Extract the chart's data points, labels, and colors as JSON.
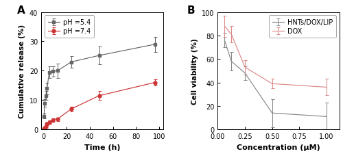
{
  "panel_A": {
    "title": "A",
    "xlabel": "Time (h)",
    "ylabel": "Cumulative release (%)",
    "ylim": [
      0,
      40
    ],
    "xlim": [
      -2,
      103
    ],
    "yticks": [
      0,
      10,
      20,
      30,
      40
    ],
    "xticks": [
      0,
      20,
      40,
      60,
      80,
      100
    ],
    "series": [
      {
        "label": "pH =5.4",
        "color": "#666666",
        "marker": "s",
        "mfc": "#666666",
        "x": [
          0.5,
          1,
          2,
          3,
          5,
          8,
          12,
          24,
          48,
          96
        ],
        "y": [
          4.5,
          9.0,
          11.5,
          14.0,
          19.5,
          19.8,
          20.0,
          23.0,
          25.2,
          29.0
        ],
        "yerr": [
          0.8,
          1.2,
          1.5,
          2.0,
          2.0,
          1.8,
          2.5,
          2.0,
          3.0,
          2.5
        ]
      },
      {
        "label": "pH =7.4",
        "color": "#cc3333",
        "marker": "o",
        "mfc": "#cc3333",
        "x": [
          0.5,
          1,
          2,
          3,
          5,
          8,
          12,
          24,
          48,
          96
        ],
        "y": [
          0.2,
          0.5,
          1.0,
          2.0,
          2.5,
          3.2,
          3.5,
          7.0,
          11.5,
          16.0
        ],
        "yerr": [
          0.2,
          0.3,
          0.4,
          0.5,
          0.5,
          0.5,
          0.6,
          0.8,
          1.5,
          1.0
        ]
      }
    ]
  },
  "panel_B": {
    "title": "B",
    "xlabel": "Concentration (μM)",
    "ylabel": "Cell viability (%)",
    "ylim": [
      0,
      100
    ],
    "xlim": [
      0.0,
      1.12
    ],
    "yticks": [
      0,
      20,
      40,
      60,
      80,
      100
    ],
    "xticks": [
      0.0,
      0.25,
      0.5,
      0.75,
      1.0
    ],
    "series": [
      {
        "label": "HNTs/DOX/LIP",
        "color": "#888888",
        "x": [
          0.0625,
          0.125,
          0.25,
          0.5,
          1.0
        ],
        "y": [
          76.0,
          58.0,
          48.0,
          14.0,
          11.0
        ],
        "yerr": [
          6.0,
          8.0,
          6.0,
          12.0,
          12.0
        ]
      },
      {
        "label": "DOX",
        "color": "#dd8888",
        "x": [
          0.0625,
          0.125,
          0.25,
          0.5,
          1.0
        ],
        "y": [
          88.0,
          81.0,
          53.0,
          39.0,
          36.0
        ],
        "yerr": [
          9.0,
          7.0,
          6.0,
          4.0,
          7.0
        ]
      }
    ]
  }
}
